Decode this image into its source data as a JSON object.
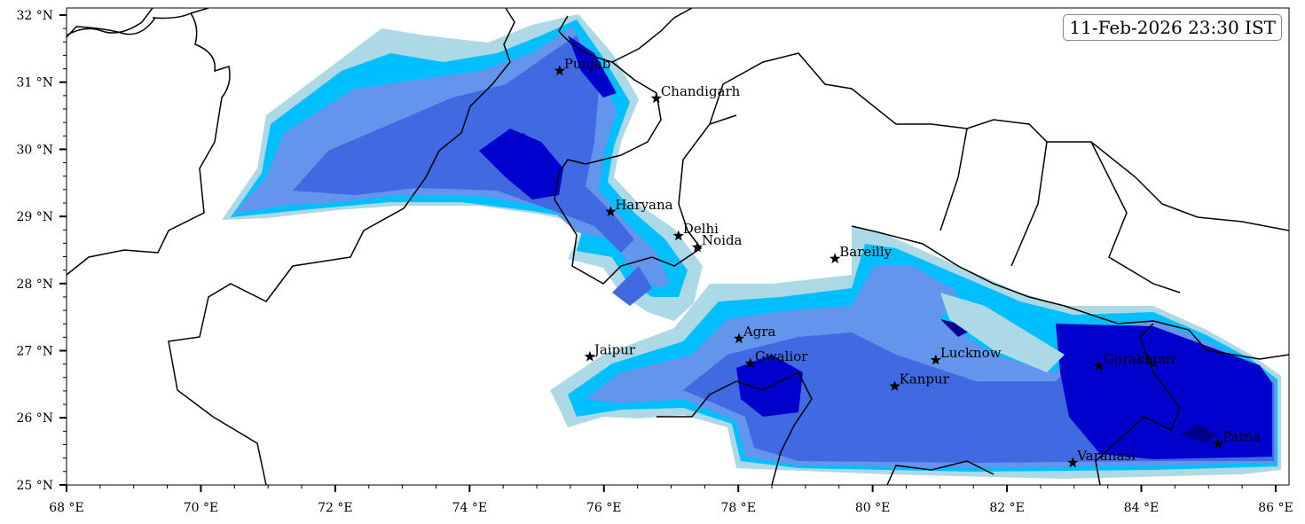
{
  "timestamp": "11-Feb-2026 23:30 IST",
  "map": {
    "extent": {
      "lon": [
        68,
        86.2
      ],
      "lat": [
        25,
        32.1
      ]
    },
    "x_ticks": [
      {
        "value": 68,
        "label": "68 °E"
      },
      {
        "value": 70,
        "label": "70 °E"
      },
      {
        "value": 72,
        "label": "72 °E"
      },
      {
        "value": 74,
        "label": "74 °E"
      },
      {
        "value": 76,
        "label": "76 °E"
      },
      {
        "value": 78,
        "label": "78 °E"
      },
      {
        "value": 80,
        "label": "80 °E"
      },
      {
        "value": 82,
        "label": "82 °E"
      },
      {
        "value": 84,
        "label": "84 °E"
      },
      {
        "value": 86,
        "label": "86 °E"
      }
    ],
    "y_ticks": [
      {
        "value": 25,
        "label": "25 °N"
      },
      {
        "value": 26,
        "label": "26 °N"
      },
      {
        "value": 27,
        "label": "27 °N"
      },
      {
        "value": 28,
        "label": "28 °N"
      },
      {
        "value": 29,
        "label": "29 °N"
      },
      {
        "value": 30,
        "label": "30 °N"
      },
      {
        "value": 31,
        "label": "31 °N"
      },
      {
        "value": 32,
        "label": "32 °N"
      }
    ],
    "level_colors": [
      "#add8e6",
      "#00bfff",
      "#6495ed",
      "#4169e1",
      "#0000cd",
      "#00008b"
    ],
    "cities": [
      {
        "name": "Punjab",
        "lon": 75.34,
        "lat": 31.17
      },
      {
        "name": "Chandigarh",
        "lon": 76.78,
        "lat": 30.76
      },
      {
        "name": "Haryana",
        "lon": 76.1,
        "lat": 29.07
      },
      {
        "name": "Delhi",
        "lon": 77.11,
        "lat": 28.71
      },
      {
        "name": "Noida",
        "lon": 77.39,
        "lat": 28.54
      },
      {
        "name": "Bareilly",
        "lon": 79.44,
        "lat": 28.37
      },
      {
        "name": "Agra",
        "lon": 78.01,
        "lat": 27.18
      },
      {
        "name": "Jaipur",
        "lon": 75.79,
        "lat": 26.91
      },
      {
        "name": "Gwalior",
        "lon": 78.18,
        "lat": 26.81
      },
      {
        "name": "Lucknow",
        "lon": 80.94,
        "lat": 26.86
      },
      {
        "name": "Kanpur",
        "lon": 80.33,
        "lat": 26.47
      },
      {
        "name": "Gorakhpur",
        "lon": 83.37,
        "lat": 26.77
      },
      {
        "name": "Varanasi",
        "lon": 82.98,
        "lat": 25.33
      },
      {
        "name": "Patna",
        "lon": 85.14,
        "lat": 25.61
      }
    ]
  }
}
